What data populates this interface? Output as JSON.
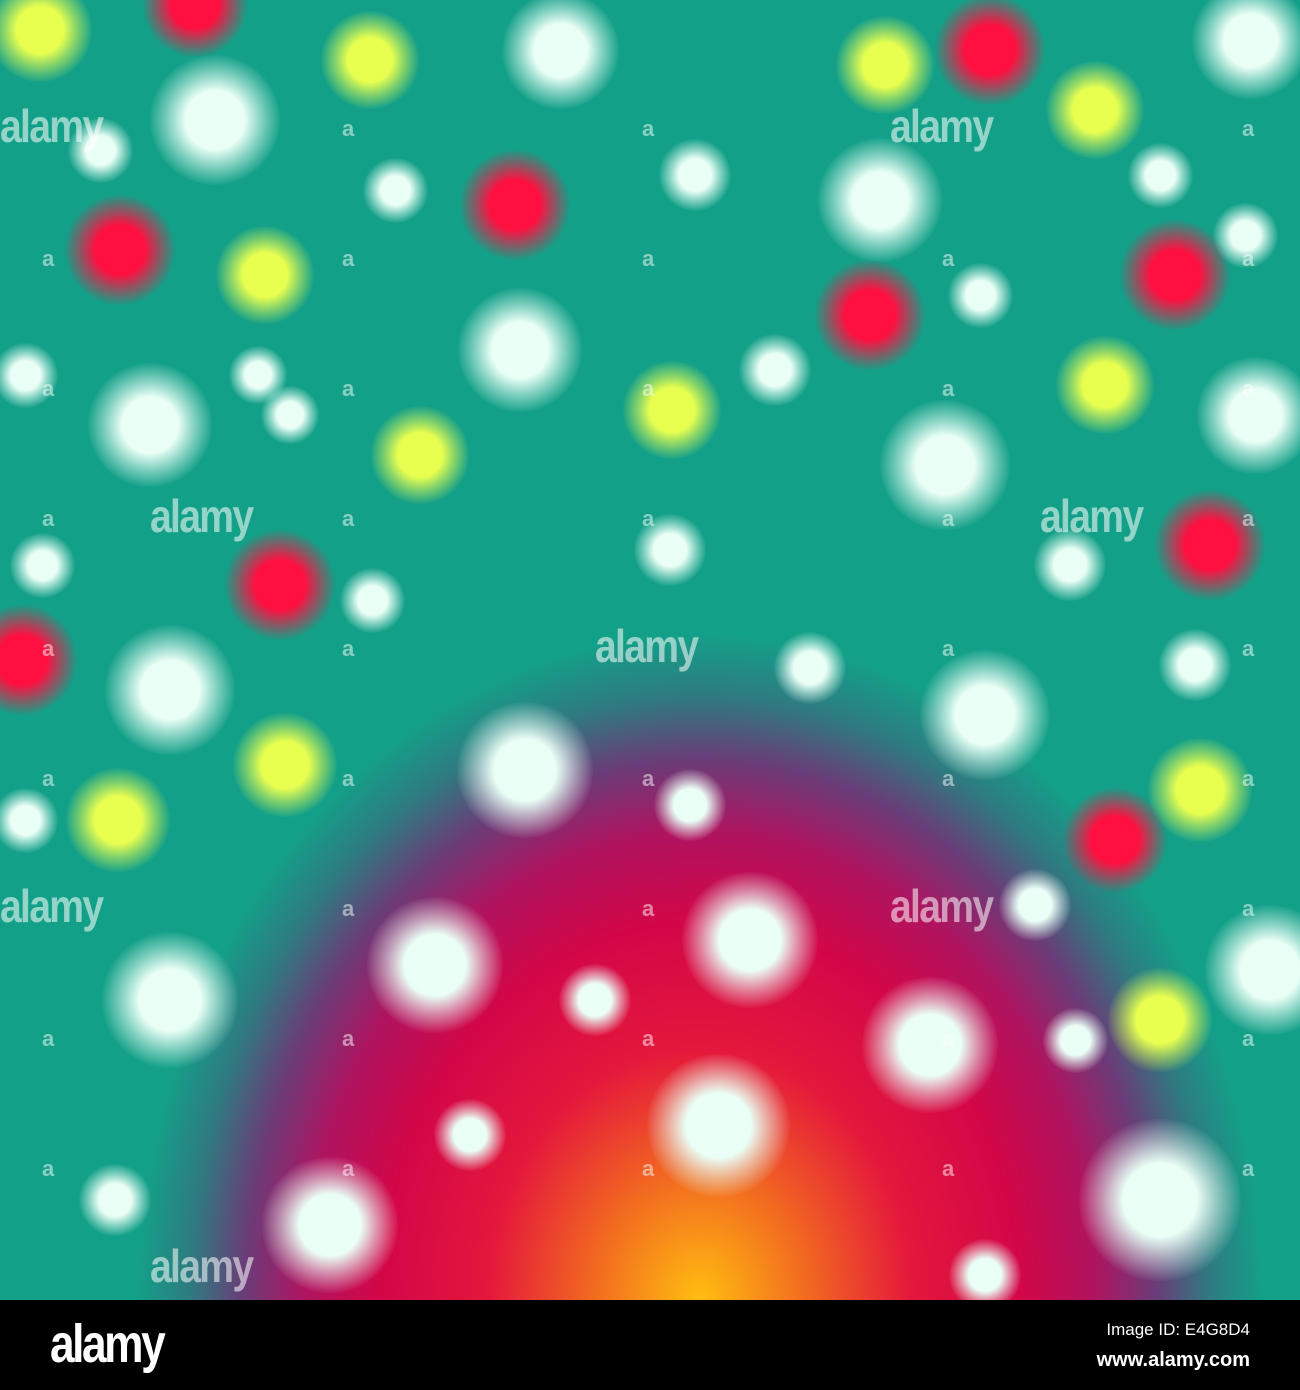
{
  "photo": {
    "subject": "bokeh lights on teal-to-magenta-to-orange gradient",
    "colors": {
      "teal": "#13a088",
      "magenta": "#d30748",
      "orange": "#f26a20",
      "yellow": "#ffbe10",
      "bokeh_white": "#eafff6",
      "bokeh_red": "#ff1040",
      "bokeh_yellow": "#e8ff50"
    },
    "watermark_text": "alamy",
    "watermark_mark": "a"
  },
  "footer": {
    "logo": "alamy",
    "image_id": "Image ID: E4G8D4",
    "website": "www.alamy.com"
  }
}
